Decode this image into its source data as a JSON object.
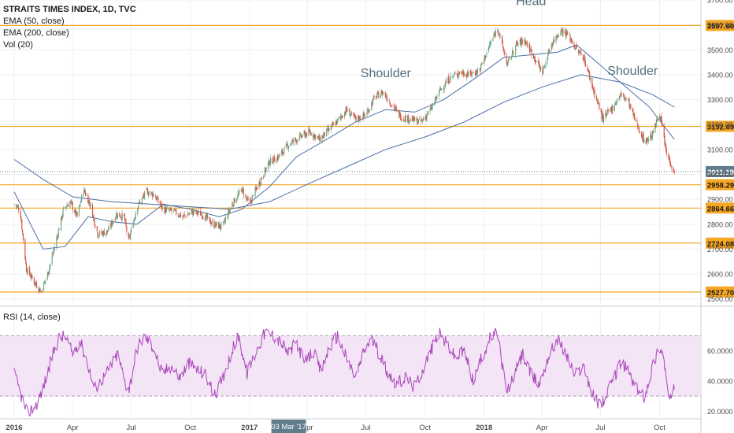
{
  "legend": {
    "title": "STRAITS TIMES INDEX, 1D, TVC",
    "ema50": "EMA (50, close)",
    "ema200": "EMA (200, close)",
    "vol": "Vol (20)",
    "rsi": "RSI (14, close)"
  },
  "colors": {
    "up": "#6ba583",
    "down": "#d75442",
    "ema": "#4a6fa5",
    "level": "#f5a623",
    "rsi_line": "#ab47bc",
    "rsi_band": "#f3e5f5",
    "current": "#607d8b",
    "crosshair_tag": "#607d8b"
  },
  "chart_data": [
    {
      "type": "line",
      "title": "STRAITS TIMES INDEX, 1D, TVC",
      "description_series": "candlestick price with EMA 50 and EMA 200",
      "y_range": [
        2480,
        3700
      ],
      "x_range": [
        "2016-01-01",
        "2018-10-31"
      ],
      "x_ticks": [
        "2016",
        "Apr",
        "Jul",
        "Oct",
        "2017",
        "Apr",
        "Jul",
        "Oct",
        "2018",
        "Apr",
        "Jul",
        "Oct"
      ],
      "x_tick_dates": [
        "2016-01-01",
        "2016-04-01",
        "2016-07-01",
        "2016-10-01",
        "2017-01-01",
        "2017-04-01",
        "2017-07-01",
        "2017-10-01",
        "2018-01-01",
        "2018-04-01",
        "2018-07-01",
        "2018-10-01"
      ],
      "y_ticks": [
        2500,
        2600,
        2700,
        2800,
        2900,
        3000,
        3100,
        3200,
        3300,
        3400,
        3500,
        3600,
        3700
      ],
      "y_tick_labels": [
        "2500.00",
        "2600.00",
        "2700.00",
        "2800.00",
        "2900.00",
        "3000.00",
        "3100.00",
        "3200.00",
        "3300.00",
        "3400.00",
        "3500.00",
        "3600.00",
        "3700.00"
      ],
      "levels": [
        {
          "value": 3597.6,
          "label": "3597.60"
        },
        {
          "value": 3192.69,
          "label": "3192.69"
        },
        {
          "value": 2958.29,
          "label": "2958.29"
        },
        {
          "value": 2864.66,
          "label": "2864.66"
        },
        {
          "value": 2724.08,
          "label": "2724.08"
        },
        {
          "value": 2527.7,
          "label": "2527.70"
        }
      ],
      "current_price": {
        "value": 3011.19,
        "label": "3011.19"
      },
      "price_path": [
        [
          "2016-01-01",
          2880
        ],
        [
          "2016-01-10",
          2860
        ],
        [
          "2016-01-20",
          2620
        ],
        [
          "2016-02-01",
          2570
        ],
        [
          "2016-02-12",
          2530
        ],
        [
          "2016-02-22",
          2600
        ],
        [
          "2016-03-05",
          2720
        ],
        [
          "2016-03-18",
          2860
        ],
        [
          "2016-03-28",
          2890
        ],
        [
          "2016-04-08",
          2830
        ],
        [
          "2016-04-18",
          2940
        ],
        [
          "2016-04-28",
          2880
        ],
        [
          "2016-05-10",
          2760
        ],
        [
          "2016-05-25",
          2770
        ],
        [
          "2016-06-08",
          2840
        ],
        [
          "2016-06-20",
          2830
        ],
        [
          "2016-06-27",
          2730
        ],
        [
          "2016-07-10",
          2870
        ],
        [
          "2016-07-25",
          2930
        ],
        [
          "2016-08-05",
          2920
        ],
        [
          "2016-08-20",
          2860
        ],
        [
          "2016-09-05",
          2850
        ],
        [
          "2016-09-20",
          2830
        ],
        [
          "2016-10-05",
          2850
        ],
        [
          "2016-10-20",
          2840
        ],
        [
          "2016-11-05",
          2800
        ],
        [
          "2016-11-20",
          2790
        ],
        [
          "2016-12-05",
          2880
        ],
        [
          "2016-12-20",
          2940
        ],
        [
          "2017-01-01",
          2880
        ],
        [
          "2017-01-15",
          2960
        ],
        [
          "2017-02-01",
          3050
        ],
        [
          "2017-02-15",
          3070
        ],
        [
          "2017-03-03",
          3120
        ],
        [
          "2017-03-20",
          3150
        ],
        [
          "2017-04-05",
          3170
        ],
        [
          "2017-04-20",
          3140
        ],
        [
          "2017-05-05",
          3180
        ],
        [
          "2017-05-20",
          3220
        ],
        [
          "2017-06-01",
          3260
        ],
        [
          "2017-06-15",
          3220
        ],
        [
          "2017-07-01",
          3240
        ],
        [
          "2017-07-15",
          3310
        ],
        [
          "2017-07-28",
          3330
        ],
        [
          "2017-08-10",
          3280
        ],
        [
          "2017-08-25",
          3230
        ],
        [
          "2017-09-10",
          3220
        ],
        [
          "2017-09-25",
          3210
        ],
        [
          "2017-10-10",
          3260
        ],
        [
          "2017-10-25",
          3340
        ],
        [
          "2017-11-10",
          3390
        ],
        [
          "2017-11-25",
          3410
        ],
        [
          "2017-12-10",
          3400
        ],
        [
          "2017-12-25",
          3420
        ],
        [
          "2018-01-10",
          3520
        ],
        [
          "2018-01-22",
          3590
        ],
        [
          "2018-02-06",
          3440
        ],
        [
          "2018-02-20",
          3520
        ],
        [
          "2018-03-05",
          3540
        ],
        [
          "2018-03-20",
          3470
        ],
        [
          "2018-04-02",
          3410
        ],
        [
          "2018-04-15",
          3520
        ],
        [
          "2018-04-30",
          3580
        ],
        [
          "2018-05-12",
          3560
        ],
        [
          "2018-05-25",
          3500
        ],
        [
          "2018-06-05",
          3470
        ],
        [
          "2018-06-20",
          3340
        ],
        [
          "2018-07-05",
          3220
        ],
        [
          "2018-07-20",
          3270
        ],
        [
          "2018-08-01",
          3320
        ],
        [
          "2018-08-12",
          3300
        ],
        [
          "2018-08-25",
          3210
        ],
        [
          "2018-09-08",
          3130
        ],
        [
          "2018-09-20",
          3160
        ],
        [
          "2018-10-01",
          3250
        ],
        [
          "2018-10-12",
          3080
        ],
        [
          "2018-10-24",
          3011.19
        ]
      ],
      "ema50_path": [
        [
          "2016-01-01",
          2930
        ],
        [
          "2016-02-15",
          2700
        ],
        [
          "2016-03-20",
          2710
        ],
        [
          "2016-04-25",
          2830
        ],
        [
          "2016-06-01",
          2810
        ],
        [
          "2016-07-10",
          2800
        ],
        [
          "2016-08-20",
          2880
        ],
        [
          "2016-10-01",
          2860
        ],
        [
          "2016-11-15",
          2830
        ],
        [
          "2016-12-20",
          2860
        ],
        [
          "2017-02-01",
          2950
        ],
        [
          "2017-03-15",
          3070
        ],
        [
          "2017-05-01",
          3140
        ],
        [
          "2017-06-15",
          3210
        ],
        [
          "2017-08-01",
          3260
        ],
        [
          "2017-09-15",
          3250
        ],
        [
          "2017-10-30",
          3300
        ],
        [
          "2017-12-15",
          3380
        ],
        [
          "2018-02-01",
          3470
        ],
        [
          "2018-03-15",
          3480
        ],
        [
          "2018-04-25",
          3490
        ],
        [
          "2018-05-25",
          3520
        ],
        [
          "2018-06-30",
          3440
        ],
        [
          "2018-08-10",
          3350
        ],
        [
          "2018-09-15",
          3270
        ],
        [
          "2018-10-24",
          3140
        ]
      ],
      "ema200_path": [
        [
          "2016-01-01",
          3060
        ],
        [
          "2016-02-15",
          2980
        ],
        [
          "2016-04-01",
          2910
        ],
        [
          "2016-06-01",
          2890
        ],
        [
          "2016-08-01",
          2880
        ],
        [
          "2016-10-01",
          2870
        ],
        [
          "2016-12-01",
          2860
        ],
        [
          "2017-02-01",
          2890
        ],
        [
          "2017-04-01",
          2960
        ],
        [
          "2017-06-01",
          3030
        ],
        [
          "2017-08-01",
          3100
        ],
        [
          "2017-10-01",
          3150
        ],
        [
          "2017-12-01",
          3210
        ],
        [
          "2018-02-01",
          3290
        ],
        [
          "2018-04-01",
          3350
        ],
        [
          "2018-06-01",
          3400
        ],
        [
          "2018-08-01",
          3370
        ],
        [
          "2018-09-20",
          3320
        ],
        [
          "2018-10-24",
          3270
        ]
      ],
      "annotations": [
        {
          "text": "Shoulder",
          "date": "2017-08-01",
          "value": 3390
        },
        {
          "text": "Head",
          "date": "2018-03-15",
          "value": 3680
        },
        {
          "text": "Shoulder",
          "date": "2018-08-20",
          "value": 3400
        }
      ],
      "crosshair_date_label": "03 Mar '17"
    },
    {
      "type": "line",
      "title": "RSI (14, close)",
      "y_range": [
        16,
        88
      ],
      "y_ticks": [
        20,
        40,
        60
      ],
      "y_tick_labels": [
        "20.0000",
        "40.0000",
        "60.0000"
      ],
      "band": [
        30,
        70
      ],
      "rsi_path": [
        [
          "2016-01-01",
          45
        ],
        [
          "2016-01-12",
          30
        ],
        [
          "2016-01-22",
          18
        ],
        [
          "2016-02-05",
          25
        ],
        [
          "2016-02-15",
          35
        ],
        [
          "2016-02-28",
          55
        ],
        [
          "2016-03-10",
          68
        ],
        [
          "2016-03-20",
          70
        ],
        [
          "2016-04-01",
          58
        ],
        [
          "2016-04-12",
          67
        ],
        [
          "2016-04-22",
          55
        ],
        [
          "2016-05-05",
          35
        ],
        [
          "2016-05-15",
          40
        ],
        [
          "2016-05-28",
          48
        ],
        [
          "2016-06-10",
          58
        ],
        [
          "2016-06-22",
          38
        ],
        [
          "2016-06-28",
          35
        ],
        [
          "2016-07-10",
          62
        ],
        [
          "2016-07-22",
          70
        ],
        [
          "2016-08-05",
          62
        ],
        [
          "2016-08-18",
          45
        ],
        [
          "2016-09-01",
          50
        ],
        [
          "2016-09-15",
          42
        ],
        [
          "2016-09-28",
          52
        ],
        [
          "2016-10-10",
          48
        ],
        [
          "2016-10-25",
          44
        ],
        [
          "2016-11-08",
          30
        ],
        [
          "2016-11-20",
          42
        ],
        [
          "2016-12-05",
          60
        ],
        [
          "2016-12-15",
          70
        ],
        [
          "2016-12-28",
          45
        ],
        [
          "2017-01-10",
          58
        ],
        [
          "2017-01-25",
          72
        ],
        [
          "2017-02-08",
          70
        ],
        [
          "2017-02-20",
          65
        ],
        [
          "2017-03-03",
          58
        ],
        [
          "2017-03-15",
          66
        ],
        [
          "2017-03-28",
          52
        ],
        [
          "2017-04-10",
          60
        ],
        [
          "2017-04-22",
          46
        ],
        [
          "2017-05-05",
          62
        ],
        [
          "2017-05-18",
          70
        ],
        [
          "2017-06-01",
          55
        ],
        [
          "2017-06-15",
          42
        ],
        [
          "2017-06-28",
          60
        ],
        [
          "2017-07-10",
          68
        ],
        [
          "2017-07-22",
          58
        ],
        [
          "2017-08-05",
          45
        ],
        [
          "2017-08-18",
          38
        ],
        [
          "2017-09-01",
          42
        ],
        [
          "2017-09-15",
          36
        ],
        [
          "2017-09-28",
          48
        ],
        [
          "2017-10-10",
          60
        ],
        [
          "2017-10-22",
          72
        ],
        [
          "2017-11-05",
          64
        ],
        [
          "2017-11-18",
          55
        ],
        [
          "2017-12-01",
          60
        ],
        [
          "2017-12-15",
          40
        ],
        [
          "2017-12-28",
          55
        ],
        [
          "2018-01-10",
          68
        ],
        [
          "2018-01-22",
          72
        ],
        [
          "2018-02-05",
          32
        ],
        [
          "2018-02-18",
          45
        ],
        [
          "2018-03-02",
          58
        ],
        [
          "2018-03-15",
          44
        ],
        [
          "2018-03-28",
          38
        ],
        [
          "2018-04-10",
          55
        ],
        [
          "2018-04-25",
          68
        ],
        [
          "2018-05-08",
          58
        ],
        [
          "2018-05-22",
          44
        ],
        [
          "2018-06-05",
          50
        ],
        [
          "2018-06-18",
          32
        ],
        [
          "2018-06-28",
          25
        ],
        [
          "2018-07-08",
          28
        ],
        [
          "2018-07-20",
          40
        ],
        [
          "2018-08-01",
          52
        ],
        [
          "2018-08-12",
          48
        ],
        [
          "2018-08-25",
          35
        ],
        [
          "2018-09-08",
          30
        ],
        [
          "2018-09-20",
          50
        ],
        [
          "2018-10-01",
          63
        ],
        [
          "2018-10-08",
          55
        ],
        [
          "2018-10-14",
          30
        ],
        [
          "2018-10-20",
          27
        ],
        [
          "2018-10-24",
          36
        ]
      ]
    }
  ]
}
